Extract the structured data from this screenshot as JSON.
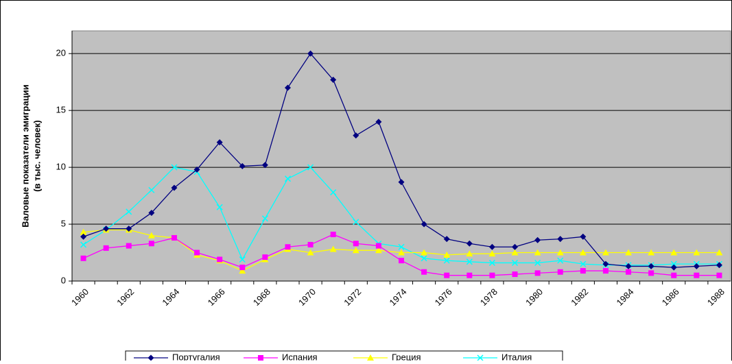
{
  "chart_data": {
    "type": "line",
    "y_label": [
      "Валовые показатели эмиграции",
      "(в тыс. человек)"
    ],
    "categories": [
      "1960",
      null,
      "1962",
      null,
      "1964",
      null,
      "1966",
      null,
      "1968",
      null,
      "1970",
      null,
      "1972",
      null,
      "1974",
      null,
      "1976",
      null,
      "1978",
      null,
      "1980",
      null,
      "1982",
      null,
      "1984",
      null,
      "1986",
      null,
      "1988"
    ],
    "series": [
      {
        "name": "Португалия",
        "color": "#000080",
        "marker": "diamond",
        "values": [
          3.9,
          4.6,
          4.6,
          6.0,
          8.2,
          9.8,
          12.2,
          10.1,
          10.2,
          17.0,
          20.0,
          17.7,
          12.8,
          14.0,
          8.7,
          5.0,
          3.7,
          3.3,
          3.0,
          3.0,
          3.6,
          3.7,
          3.9,
          1.5,
          1.3,
          1.3,
          1.2,
          1.3,
          1.4
        ]
      },
      {
        "name": "Испания",
        "color": "#ff00ff",
        "marker": "square",
        "values": [
          2.0,
          2.9,
          3.1,
          3.3,
          3.8,
          2.5,
          1.9,
          1.2,
          2.1,
          3.0,
          3.2,
          4.1,
          3.3,
          3.1,
          1.8,
          0.8,
          0.5,
          0.5,
          0.5,
          0.6,
          0.7,
          0.8,
          0.9,
          0.9,
          0.8,
          0.7,
          0.5,
          0.5,
          0.5
        ]
      },
      {
        "name": "Греция",
        "color": "#ffff00",
        "marker": "triangle",
        "values": [
          4.3,
          4.5,
          4.5,
          4.0,
          3.8,
          2.3,
          1.8,
          0.9,
          1.9,
          2.8,
          2.5,
          2.8,
          2.7,
          2.7,
          2.5,
          2.5,
          2.3,
          2.4,
          2.4,
          2.5,
          2.5,
          2.5,
          2.5,
          2.5,
          2.5,
          2.5,
          2.5,
          2.5,
          2.5
        ]
      },
      {
        "name": "Италия",
        "color": "#00ffff",
        "marker": "x",
        "values": [
          3.2,
          4.5,
          6.1,
          8.0,
          10.0,
          9.6,
          6.5,
          1.9,
          5.5,
          9.0,
          10.0,
          7.8,
          5.2,
          3.3,
          3.0,
          2.0,
          1.8,
          1.7,
          1.6,
          1.6,
          1.6,
          1.8,
          1.5,
          1.4,
          1.4,
          1.4,
          1.5,
          1.5,
          1.5
        ]
      }
    ],
    "ylim": [
      0,
      22
    ],
    "yticks": [
      0,
      5,
      10,
      15,
      20
    ],
    "grid": true,
    "plot_background": "#c0c0c0",
    "legend": "bottom"
  }
}
